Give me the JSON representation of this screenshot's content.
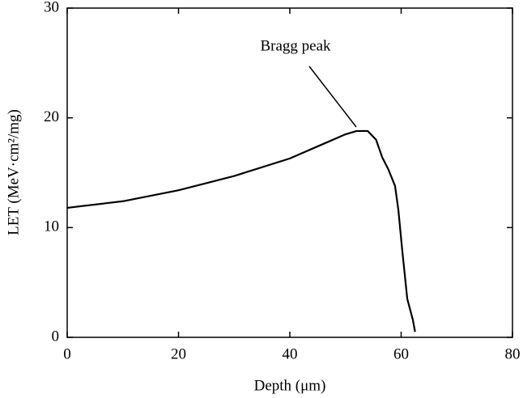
{
  "chart_data": {
    "type": "line",
    "x_label": "Depth (μm)",
    "y_label": "LET (MeV·cm²/mg)",
    "annotation": "Bragg peak",
    "xlim": [
      0,
      80
    ],
    "ylim": [
      0,
      30
    ],
    "xticks": [
      0,
      20,
      40,
      60,
      80
    ],
    "yticks": [
      0,
      10,
      20,
      30
    ],
    "series": [
      {
        "color": "#000000",
        "x": [
          0,
          10,
          20,
          30,
          40,
          45,
          50,
          52,
          54,
          55.5,
          56.6,
          57.7,
          58.9,
          59.5,
          60.2,
          61.1,
          62.1,
          62.5
        ],
        "values": [
          11.8,
          12.4,
          13.4,
          14.7,
          16.3,
          17.4,
          18.5,
          18.8,
          18.8,
          18.0,
          16.4,
          15.3,
          13.8,
          11.6,
          7.9,
          3.5,
          1.6,
          0.5
        ]
      }
    ]
  }
}
